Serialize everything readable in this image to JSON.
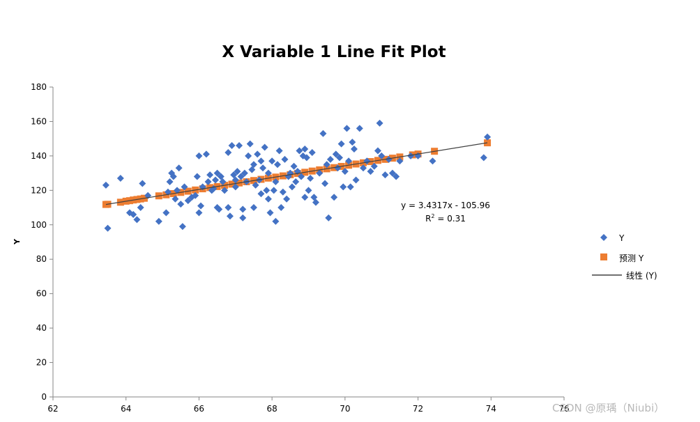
{
  "chart_data": {
    "type": "scatter",
    "title": "X Variable 1 Line Fit  Plot",
    "xlabel": "",
    "ylabel": "Y",
    "xlim": [
      62,
      76
    ],
    "ylim": [
      0,
      180
    ],
    "x_ticks": [
      "62",
      "64",
      "66",
      "68",
      "70",
      "72",
      "74",
      "76"
    ],
    "y_ticks": [
      "0",
      "20",
      "40",
      "60",
      "80",
      "100",
      "120",
      "140",
      "160",
      "180"
    ],
    "grid": false,
    "legend_position": "right",
    "colors": {
      "y": "#4472C4",
      "predicted": "#ED7D31",
      "trend": "#404040"
    },
    "trendline": {
      "slope": 3.4317,
      "intercept": -105.96,
      "x_range": [
        63.45,
        73.9
      ],
      "equation": "y = 3.4317x - 105.96",
      "r2_prefix": "R",
      "r2_sup": "2",
      "r2_value": " = 0.31"
    },
    "series": [
      {
        "name": "Y",
        "marker": "diamond",
        "points": [
          [
            63.45,
            123
          ],
          [
            63.5,
            98
          ],
          [
            63.85,
            127
          ],
          [
            64.1,
            107
          ],
          [
            64.2,
            106
          ],
          [
            64.3,
            103
          ],
          [
            64.4,
            110
          ],
          [
            64.45,
            124
          ],
          [
            64.6,
            117
          ],
          [
            64.9,
            102
          ],
          [
            65.1,
            107
          ],
          [
            65.15,
            119
          ],
          [
            65.2,
            125
          ],
          [
            65.25,
            130
          ],
          [
            65.3,
            128
          ],
          [
            65.35,
            115
          ],
          [
            65.4,
            120
          ],
          [
            65.45,
            133
          ],
          [
            65.5,
            112
          ],
          [
            65.55,
            99
          ],
          [
            65.6,
            122
          ],
          [
            65.7,
            114
          ],
          [
            65.8,
            116
          ],
          [
            65.9,
            117
          ],
          [
            65.95,
            128
          ],
          [
            66.0,
            140
          ],
          [
            66.0,
            107
          ],
          [
            66.05,
            111
          ],
          [
            66.1,
            122
          ],
          [
            66.2,
            141
          ],
          [
            66.25,
            125
          ],
          [
            66.3,
            129
          ],
          [
            66.35,
            120
          ],
          [
            66.4,
            121
          ],
          [
            66.45,
            126
          ],
          [
            66.5,
            110
          ],
          [
            66.5,
            130
          ],
          [
            66.55,
            109
          ],
          [
            66.6,
            128
          ],
          [
            66.65,
            125
          ],
          [
            66.7,
            120
          ],
          [
            66.8,
            110
          ],
          [
            66.8,
            142
          ],
          [
            66.85,
            105
          ],
          [
            66.9,
            146
          ],
          [
            66.95,
            129
          ],
          [
            67.0,
            126
          ],
          [
            67.0,
            122
          ],
          [
            67.05,
            131
          ],
          [
            67.1,
            146
          ],
          [
            67.15,
            128
          ],
          [
            67.2,
            109
          ],
          [
            67.2,
            104
          ],
          [
            67.25,
            130
          ],
          [
            67.3,
            125
          ],
          [
            67.35,
            140
          ],
          [
            67.4,
            147
          ],
          [
            67.45,
            132
          ],
          [
            67.5,
            110
          ],
          [
            67.5,
            135
          ],
          [
            67.55,
            123
          ],
          [
            67.6,
            141
          ],
          [
            67.65,
            126
          ],
          [
            67.7,
            118
          ],
          [
            67.7,
            137
          ],
          [
            67.75,
            133
          ],
          [
            67.8,
            145
          ],
          [
            67.85,
            120
          ],
          [
            67.9,
            115
          ],
          [
            67.9,
            130
          ],
          [
            67.95,
            107
          ],
          [
            68.0,
            137
          ],
          [
            68.05,
            120
          ],
          [
            68.1,
            102
          ],
          [
            68.1,
            125
          ],
          [
            68.15,
            135
          ],
          [
            68.2,
            143
          ],
          [
            68.25,
            110
          ],
          [
            68.3,
            119
          ],
          [
            68.35,
            138
          ],
          [
            68.4,
            115
          ],
          [
            68.45,
            128
          ],
          [
            68.5,
            130
          ],
          [
            68.55,
            122
          ],
          [
            68.6,
            134
          ],
          [
            68.65,
            125
          ],
          [
            68.7,
            131
          ],
          [
            68.75,
            143
          ],
          [
            68.8,
            128
          ],
          [
            68.85,
            140
          ],
          [
            68.9,
            116
          ],
          [
            68.9,
            144
          ],
          [
            68.95,
            139
          ],
          [
            69.0,
            120
          ],
          [
            69.05,
            127
          ],
          [
            69.1,
            142
          ],
          [
            69.15,
            116
          ],
          [
            69.2,
            113
          ],
          [
            69.3,
            130
          ],
          [
            69.4,
            153
          ],
          [
            69.45,
            124
          ],
          [
            69.5,
            135
          ],
          [
            69.55,
            104
          ],
          [
            69.6,
            138
          ],
          [
            69.7,
            116
          ],
          [
            69.75,
            141
          ],
          [
            69.8,
            133
          ],
          [
            69.85,
            139
          ],
          [
            69.9,
            147
          ],
          [
            69.95,
            122
          ],
          [
            70.0,
            131
          ],
          [
            70.05,
            156
          ],
          [
            70.1,
            137
          ],
          [
            70.15,
            122
          ],
          [
            70.2,
            148
          ],
          [
            70.25,
            144
          ],
          [
            70.3,
            126
          ],
          [
            70.4,
            156
          ],
          [
            70.5,
            133
          ],
          [
            70.6,
            137
          ],
          [
            70.7,
            131
          ],
          [
            70.8,
            134
          ],
          [
            70.9,
            143
          ],
          [
            70.95,
            159
          ],
          [
            71.0,
            140
          ],
          [
            71.1,
            129
          ],
          [
            71.2,
            138
          ],
          [
            71.3,
            130
          ],
          [
            71.4,
            128
          ],
          [
            71.5,
            137
          ],
          [
            71.8,
            140
          ],
          [
            72.0,
            140
          ],
          [
            72.4,
            137
          ],
          [
            73.8,
            139
          ],
          [
            73.9,
            151
          ]
        ]
      },
      {
        "name": "预测 Y",
        "marker": "square",
        "points": [
          [
            63.45,
            111.8
          ],
          [
            63.5,
            111.9
          ],
          [
            63.85,
            113.1
          ],
          [
            64.0,
            113.7
          ],
          [
            64.1,
            114.0
          ],
          [
            64.2,
            114.4
          ],
          [
            64.3,
            114.7
          ],
          [
            64.4,
            115.0
          ],
          [
            64.5,
            115.4
          ],
          [
            64.9,
            116.8
          ],
          [
            65.1,
            117.4
          ],
          [
            65.3,
            118.1
          ],
          [
            65.5,
            118.8
          ],
          [
            65.7,
            119.5
          ],
          [
            65.9,
            120.2
          ],
          [
            66.1,
            120.9
          ],
          [
            66.3,
            121.6
          ],
          [
            66.5,
            122.2
          ],
          [
            66.7,
            122.9
          ],
          [
            66.9,
            123.6
          ],
          [
            67.1,
            124.3
          ],
          [
            67.3,
            125.0
          ],
          [
            67.5,
            125.7
          ],
          [
            67.7,
            126.4
          ],
          [
            67.9,
            127.1
          ],
          [
            68.1,
            127.7
          ],
          [
            68.3,
            128.4
          ],
          [
            68.5,
            129.1
          ],
          [
            68.7,
            129.8
          ],
          [
            68.9,
            130.5
          ],
          [
            69.1,
            131.2
          ],
          [
            69.3,
            131.9
          ],
          [
            69.5,
            132.5
          ],
          [
            69.7,
            133.2
          ],
          [
            69.9,
            133.9
          ],
          [
            70.1,
            134.6
          ],
          [
            70.3,
            135.3
          ],
          [
            70.5,
            136.0
          ],
          [
            70.7,
            136.7
          ],
          [
            70.9,
            137.4
          ],
          [
            71.1,
            138.0
          ],
          [
            71.3,
            138.7
          ],
          [
            71.5,
            139.4
          ],
          [
            71.85,
            140.6
          ],
          [
            72.0,
            141.1
          ],
          [
            72.45,
            142.7
          ],
          [
            73.9,
            147.6
          ]
        ]
      }
    ],
    "legend": {
      "y_label": "Y",
      "pred_label": "预测 Y",
      "trend_label": "线性 (Y)"
    }
  },
  "watermark": "CSDN @原瑀（Niubi）"
}
